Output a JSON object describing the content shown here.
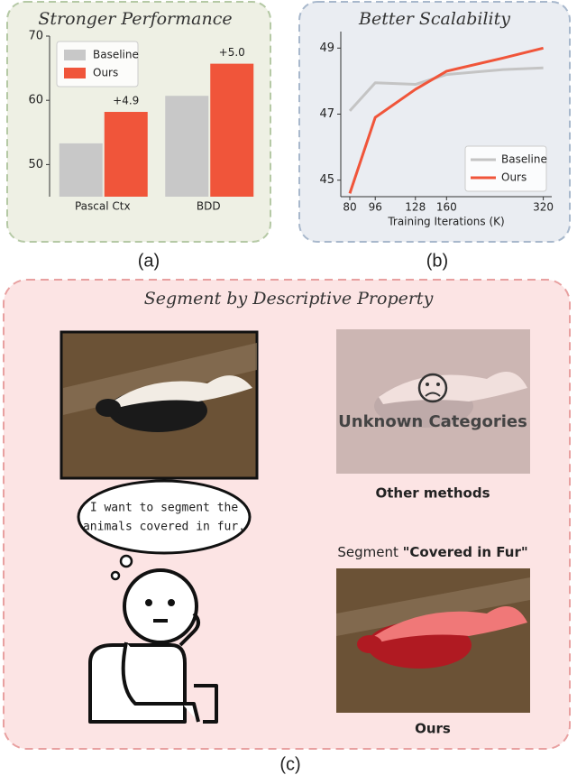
{
  "chart_data": [
    {
      "type": "bar",
      "title": "Stronger Performance",
      "categories": [
        "Pascal Ctx",
        "BDD"
      ],
      "series": [
        {
          "name": "Baseline",
          "color": "#c8c8c8",
          "values": [
            53.3,
            60.7
          ]
        },
        {
          "name": "Ours",
          "color": "#f0553a",
          "values": [
            58.2,
            65.7
          ]
        }
      ],
      "annotations": [
        "+4.9",
        "+5.0"
      ],
      "ylim": [
        45,
        70
      ],
      "yticks": [
        50,
        60,
        70
      ],
      "legend": "upper-left"
    },
    {
      "type": "line",
      "title": "Better Scalability",
      "xlabel": "Training Iterations (K)",
      "x": [
        80,
        96,
        128,
        160,
        240,
        320
      ],
      "xscale": "log",
      "series": [
        {
          "name": "Baseline",
          "color": "#c4c4c4",
          "values": [
            47.1,
            47.95,
            47.9,
            48.2,
            48.35,
            48.4
          ]
        },
        {
          "name": "Ours",
          "color": "#f0553a",
          "values": [
            44.6,
            46.9,
            47.75,
            48.3,
            48.7,
            49.0
          ]
        }
      ],
      "xlim": [
        75,
        340
      ],
      "xticks": [
        80,
        96,
        128,
        160,
        320
      ],
      "ylim": [
        44.5,
        49.5
      ],
      "yticks": [
        45,
        47,
        49
      ],
      "legend": "lower-right"
    }
  ],
  "panel_labels": [
    "(a)",
    "(b)",
    "(c)"
  ],
  "panel_c": {
    "title": "Segment by Descriptive Property",
    "speech": [
      "I want to segment the",
      "animals covered in fur."
    ],
    "unknown": "Unknown Categories",
    "other_label": "Other methods",
    "segment_prefix": "Segment",
    "segment_query": "\"Covered in Fur\"",
    "ours_label": "Ours"
  }
}
